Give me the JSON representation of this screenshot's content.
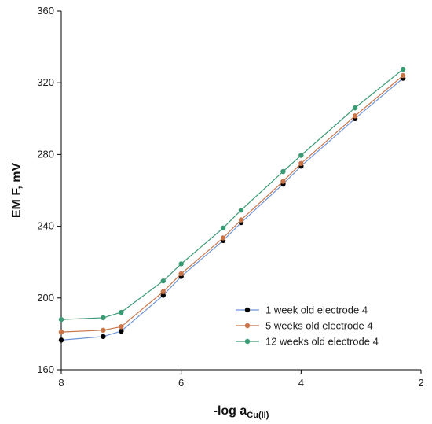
{
  "chart_data": {
    "type": "line",
    "xlabel": "-log a",
    "xlabel_sub": "Cu(II)",
    "ylabel": "EM F, mV",
    "xlim": [
      8,
      2
    ],
    "ylim": [
      160,
      360
    ],
    "x_reversed": true,
    "x_ticks": [
      8,
      6,
      4,
      2
    ],
    "y_ticks": [
      160,
      200,
      240,
      280,
      320,
      360
    ],
    "grid": false,
    "legend_position": "lower-right",
    "series": [
      {
        "name": "1 week old electrode 4",
        "line_color": "#6f95d8",
        "marker_color": "#000000",
        "x": [
          8,
          7.3,
          7,
          6.3,
          6,
          5.3,
          5,
          4.3,
          4,
          3.1,
          2.3
        ],
        "y": [
          176.5,
          178.5,
          181.5,
          201.5,
          212,
          232,
          242,
          263.5,
          273.5,
          300,
          322.5
        ]
      },
      {
        "name": "5 weeks old electrode 4",
        "line_color": "#c8754a",
        "marker_color": "#c8754a",
        "x": [
          8,
          7.3,
          7,
          6.3,
          6,
          5.3,
          5,
          4.3,
          4,
          3.1,
          2.3
        ],
        "y": [
          181,
          182,
          184,
          203.5,
          213.5,
          233.5,
          243.5,
          265,
          275,
          301.5,
          324
        ]
      },
      {
        "name": "12 weeks old electrode 4",
        "line_color": "#3a9a74",
        "marker_color": "#3a9a74",
        "x": [
          8,
          7.3,
          7,
          6.3,
          6,
          5.3,
          5,
          4.3,
          4,
          3.1,
          2.3
        ],
        "y": [
          188,
          189,
          192,
          209.5,
          219,
          239,
          249,
          270.5,
          279.5,
          306,
          327.5
        ]
      }
    ]
  }
}
